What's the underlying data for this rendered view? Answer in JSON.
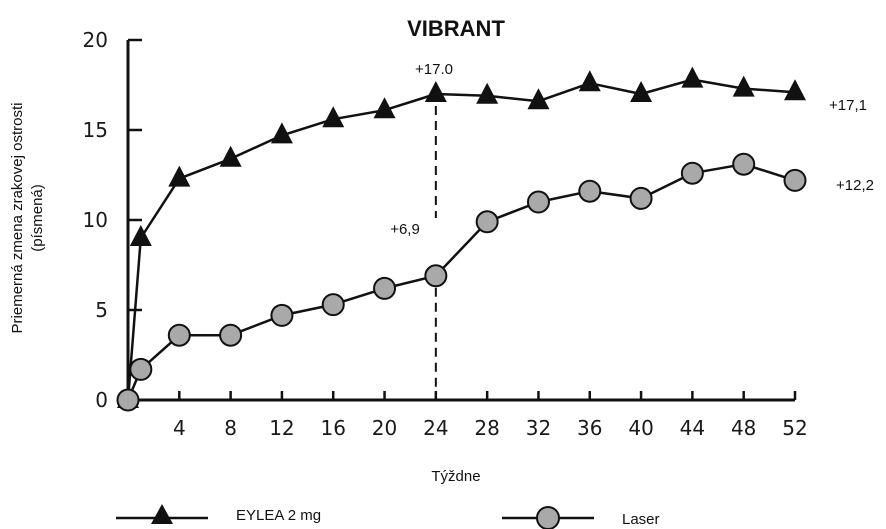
{
  "chart_data": {
    "type": "line",
    "title": "VIBRANT",
    "xlabel": "Týždne",
    "ylabel_line1": "Priemerná zmena zrakovej ostrosti",
    "ylabel_line2": "(písmená)",
    "xlim": [
      0,
      52
    ],
    "ylim": [
      0,
      20
    ],
    "x_ticks": [
      4,
      8,
      12,
      16,
      20,
      24,
      28,
      32,
      36,
      40,
      44,
      48,
      52
    ],
    "y_ticks": [
      0,
      5,
      10,
      15,
      20
    ],
    "grid": false,
    "legend_position": "bottom",
    "series": [
      {
        "name": "EYLEA 2 mg",
        "marker": "triangle",
        "color": "#111111",
        "x": [
          0,
          1,
          4,
          8,
          12,
          16,
          20,
          24,
          28,
          32,
          36,
          40,
          44,
          48,
          52
        ],
        "values": [
          0,
          9.0,
          12.3,
          13.4,
          14.7,
          15.6,
          16.1,
          17.0,
          16.9,
          16.6,
          17.6,
          17.0,
          17.8,
          17.3,
          17.1
        ]
      },
      {
        "name": "Laser",
        "marker": "circle",
        "color": "#111111",
        "fill": "#a9a9a9",
        "x": [
          0,
          1,
          4,
          8,
          12,
          16,
          20,
          24,
          28,
          32,
          36,
          40,
          44,
          48,
          52
        ],
        "values": [
          0,
          1.7,
          3.6,
          3.6,
          4.7,
          5.3,
          6.2,
          6.9,
          9.9,
          11.0,
          11.6,
          11.2,
          12.6,
          13.1,
          12.2
        ]
      }
    ],
    "annotations": {
      "week24_eylea": "+17.0",
      "week24_laser": "+6,9",
      "end_eylea": "+17,1",
      "end_laser": "+12,2"
    }
  }
}
